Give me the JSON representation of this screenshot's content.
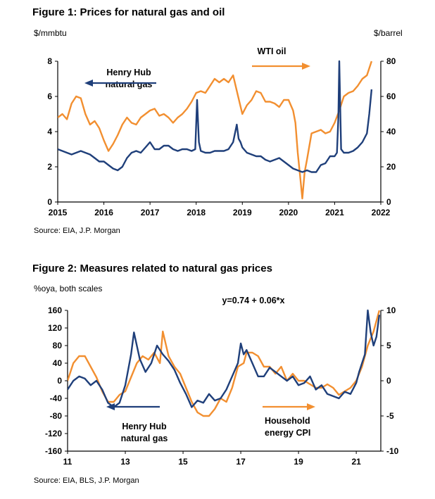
{
  "chart_data": [
    {
      "type": "line",
      "title": "Figure 1: Prices for natural gas and oil",
      "ylabel_left": "$/mmbtu",
      "ylabel_right": "$/barrel",
      "source": "Source: EIA, J.P. Morgan",
      "xlim": [
        2015,
        2022
      ],
      "x_ticks": [
        "2015",
        "2016",
        "2017",
        "2018",
        "2019",
        "2020",
        "2021",
        "2022"
      ],
      "ylim_left": [
        0,
        8
      ],
      "y_ticks_left": [
        "0",
        "2",
        "4",
        "6",
        "8"
      ],
      "ylim_right": [
        0,
        80
      ],
      "y_ticks_right": [
        "0",
        "20",
        "40",
        "60",
        "80"
      ],
      "annotations": {
        "gas_line1": "Henry Hub",
        "gas_line2": "natural gas",
        "oil": "WTI oil"
      },
      "series": [
        {
          "name": "Henry Hub natural gas",
          "axis": "left",
          "color": "#1f3f7a",
          "x": [
            2015.0,
            2015.1,
            2015.2,
            2015.3,
            2015.4,
            2015.5,
            2015.6,
            2015.7,
            2015.8,
            2015.9,
            2016.0,
            2016.1,
            2016.2,
            2016.3,
            2016.4,
            2016.5,
            2016.6,
            2016.7,
            2016.8,
            2016.9,
            2017.0,
            2017.1,
            2017.2,
            2017.3,
            2017.4,
            2017.5,
            2017.6,
            2017.7,
            2017.8,
            2017.9,
            2017.98,
            2018.02,
            2018.06,
            2018.1,
            2018.2,
            2018.3,
            2018.4,
            2018.5,
            2018.6,
            2018.7,
            2018.8,
            2018.88,
            2018.92,
            2018.96,
            2019.0,
            2019.1,
            2019.2,
            2019.3,
            2019.4,
            2019.5,
            2019.6,
            2019.7,
            2019.8,
            2019.9,
            2020.0,
            2020.1,
            2020.2,
            2020.3,
            2020.4,
            2020.5,
            2020.6,
            2020.7,
            2020.8,
            2020.9,
            2021.0,
            2021.05,
            2021.08,
            2021.1,
            2021.14,
            2021.2,
            2021.3,
            2021.4,
            2021.5,
            2021.6,
            2021.7,
            2021.75,
            2021.8
          ],
          "values": [
            3.0,
            2.9,
            2.8,
            2.7,
            2.8,
            2.9,
            2.8,
            2.7,
            2.5,
            2.3,
            2.3,
            2.1,
            1.9,
            1.8,
            2.0,
            2.5,
            2.8,
            2.9,
            2.8,
            3.1,
            3.4,
            3.0,
            3.0,
            3.2,
            3.2,
            3.0,
            2.9,
            3.0,
            3.0,
            2.9,
            3.0,
            5.8,
            3.4,
            2.9,
            2.8,
            2.8,
            2.9,
            2.9,
            2.9,
            3.0,
            3.4,
            4.4,
            3.6,
            3.4,
            3.1,
            2.8,
            2.7,
            2.6,
            2.6,
            2.4,
            2.3,
            2.4,
            2.5,
            2.3,
            2.1,
            1.9,
            1.8,
            1.7,
            1.8,
            1.7,
            1.7,
            2.1,
            2.2,
            2.6,
            2.6,
            2.8,
            4.8,
            8.0,
            3.0,
            2.8,
            2.8,
            2.9,
            3.1,
            3.4,
            3.9,
            5.0,
            6.4
          ]
        },
        {
          "name": "WTI oil",
          "axis": "right",
          "color": "#f28f30",
          "x": [
            2015.0,
            2015.1,
            2015.2,
            2015.3,
            2015.4,
            2015.5,
            2015.6,
            2015.7,
            2015.8,
            2015.9,
            2016.0,
            2016.1,
            2016.2,
            2016.3,
            2016.4,
            2016.5,
            2016.6,
            2016.7,
            2016.8,
            2016.9,
            2017.0,
            2017.1,
            2017.2,
            2017.3,
            2017.4,
            2017.5,
            2017.6,
            2017.7,
            2017.8,
            2017.9,
            2018.0,
            2018.1,
            2018.2,
            2018.3,
            2018.4,
            2018.5,
            2018.6,
            2018.7,
            2018.8,
            2018.9,
            2019.0,
            2019.1,
            2019.2,
            2019.3,
            2019.4,
            2019.5,
            2019.6,
            2019.7,
            2019.8,
            2019.9,
            2020.0,
            2020.1,
            2020.15,
            2020.2,
            2020.25,
            2020.3,
            2020.35,
            2020.4,
            2020.5,
            2020.6,
            2020.7,
            2020.8,
            2020.9,
            2021.0,
            2021.1,
            2021.2,
            2021.3,
            2021.4,
            2021.5,
            2021.6,
            2021.7,
            2021.8
          ],
          "values": [
            48,
            50,
            47,
            56,
            60,
            59,
            50,
            44,
            46,
            42,
            35,
            29,
            33,
            38,
            44,
            48,
            45,
            44,
            48,
            50,
            52,
            53,
            49,
            50,
            48,
            45,
            48,
            50,
            53,
            57,
            62,
            63,
            62,
            66,
            70,
            68,
            70,
            68,
            72,
            61,
            50,
            55,
            58,
            63,
            62,
            57,
            57,
            56,
            54,
            58,
            58,
            52,
            45,
            28,
            15,
            2,
            17,
            24,
            39,
            40,
            41,
            39,
            40,
            45,
            52,
            60,
            62,
            63,
            66,
            70,
            72,
            80
          ]
        }
      ]
    },
    {
      "type": "line",
      "title": "Figure 2: Measures related to natural gas prices",
      "subtitle": "%oya, both scales",
      "equation": "y=0.74 + 0.06*x",
      "source": "Source: EIA, BLS, J.P. Morgan",
      "xlim": [
        11,
        21.85
      ],
      "x_ticks": [
        "11",
        "13",
        "15",
        "17",
        "19",
        "21"
      ],
      "ylim_left": [
        -160,
        160
      ],
      "y_ticks_left": [
        "160",
        "120",
        "80",
        "40",
        "0",
        "-40",
        "-80",
        "-120",
        "-160"
      ],
      "ylim_right": [
        -10,
        10
      ],
      "y_ticks_right": [
        "10",
        "5",
        "0",
        "-5",
        "-10"
      ],
      "annotations": {
        "gas_line1": "Henry Hub",
        "gas_line2": "natural gas",
        "cpi_line1": "Household",
        "cpi_line2": "energy CPI"
      },
      "series": [
        {
          "name": "Henry Hub natural gas",
          "axis": "left",
          "color": "#1f3f7a",
          "x": [
            11.0,
            11.2,
            11.4,
            11.6,
            11.8,
            12.0,
            12.2,
            12.4,
            12.6,
            12.8,
            13.0,
            13.2,
            13.3,
            13.5,
            13.7,
            13.9,
            14.1,
            14.3,
            14.5,
            14.7,
            14.9,
            15.1,
            15.3,
            15.5,
            15.7,
            15.9,
            16.1,
            16.3,
            16.5,
            16.7,
            16.9,
            17.0,
            17.1,
            17.2,
            17.4,
            17.6,
            17.8,
            18.0,
            18.2,
            18.4,
            18.6,
            18.8,
            19.0,
            19.2,
            19.4,
            19.6,
            19.8,
            20.0,
            20.2,
            20.4,
            20.6,
            20.8,
            21.0,
            21.1,
            21.2,
            21.3,
            21.4,
            21.5,
            21.6,
            21.7,
            21.8
          ],
          "values": [
            -20,
            0,
            10,
            5,
            -10,
            0,
            -20,
            -50,
            -60,
            -50,
            -10,
            60,
            110,
            50,
            20,
            40,
            80,
            60,
            45,
            25,
            -5,
            -30,
            -60,
            -45,
            -50,
            -30,
            -45,
            -40,
            -20,
            10,
            40,
            85,
            60,
            70,
            40,
            10,
            10,
            30,
            20,
            10,
            0,
            10,
            -10,
            -5,
            10,
            -20,
            -10,
            -30,
            -35,
            -40,
            -25,
            -30,
            -5,
            20,
            40,
            60,
            160,
            110,
            80,
            100,
            150
          ]
        },
        {
          "name": "Household energy CPI",
          "axis": "right",
          "color": "#f28f30",
          "x": [
            11.0,
            11.2,
            11.4,
            11.6,
            11.8,
            12.0,
            12.2,
            12.4,
            12.6,
            12.8,
            13.0,
            13.2,
            13.4,
            13.6,
            13.8,
            14.0,
            14.2,
            14.3,
            14.5,
            14.7,
            14.9,
            15.1,
            15.3,
            15.5,
            15.7,
            15.9,
            16.1,
            16.3,
            16.5,
            16.7,
            16.9,
            17.1,
            17.2,
            17.4,
            17.6,
            17.8,
            18.0,
            18.2,
            18.4,
            18.6,
            18.8,
            19.0,
            19.2,
            19.4,
            19.6,
            19.8,
            20.0,
            20.2,
            20.4,
            20.6,
            20.8,
            21.0,
            21.2,
            21.4,
            21.6,
            21.8
          ],
          "values": [
            0,
            2.5,
            3.5,
            3.5,
            2,
            0.5,
            -1.5,
            -3,
            -3,
            -2,
            -1.5,
            0.5,
            2.5,
            3.5,
            3,
            4,
            2.5,
            7,
            3.5,
            2,
            1,
            -1,
            -3,
            -4.5,
            -5,
            -5,
            -4,
            -2.5,
            -3,
            -1,
            2,
            2.5,
            4,
            4,
            3.5,
            2,
            2,
            1,
            2,
            0,
            1,
            0,
            0,
            -0.5,
            -1,
            -1,
            -0.5,
            -1,
            -2,
            -1.5,
            -1,
            0,
            2,
            5,
            7,
            10
          ]
        }
      ]
    }
  ]
}
